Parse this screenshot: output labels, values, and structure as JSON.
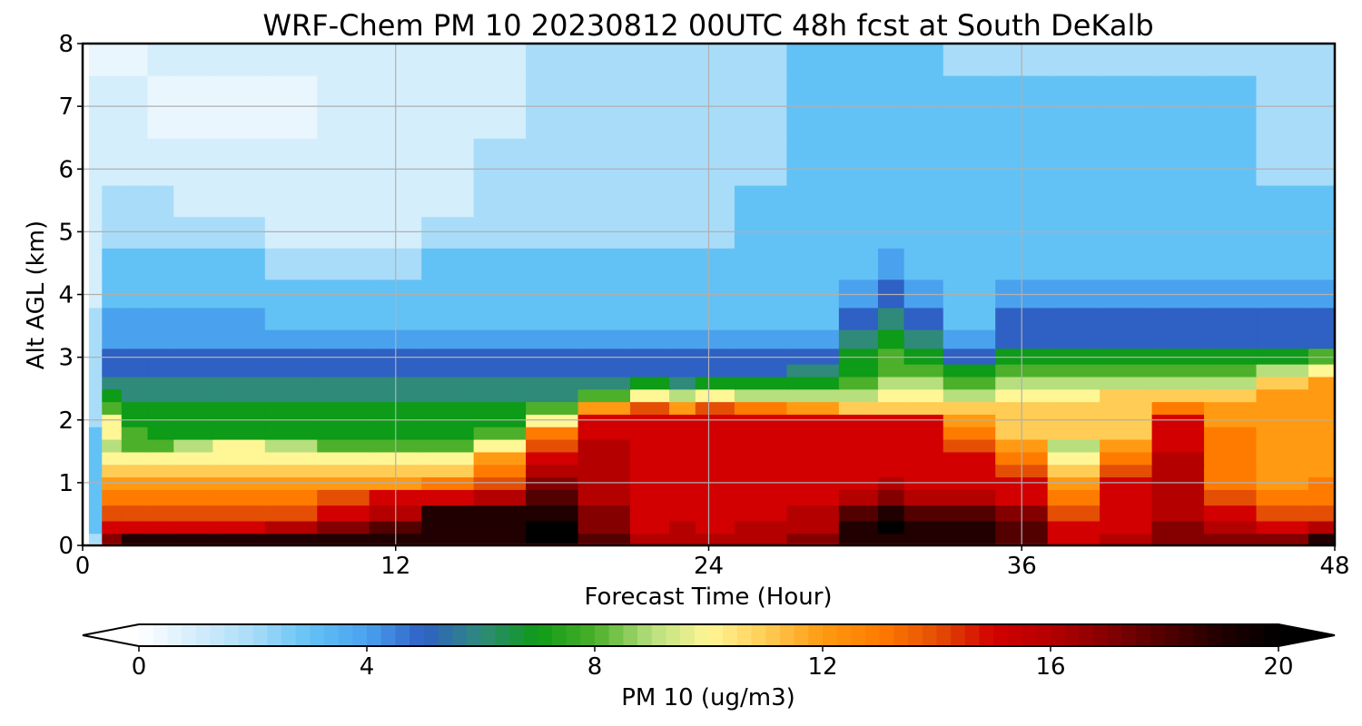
{
  "chart_data": {
    "type": "heatmap",
    "title": "WRF-Chem PM 10  20230812 00UTC 48h fcst at South DeKalb",
    "xlabel": "Forecast Time (Hour)",
    "ylabel": "Alt AGL (km)",
    "xlim": [
      0,
      48
    ],
    "ylim": [
      0,
      8
    ],
    "xticks": [
      0,
      12,
      24,
      36,
      48
    ],
    "yticks": [
      0,
      1,
      2,
      3,
      4,
      5,
      6,
      7,
      8
    ],
    "grid": true,
    "colorbar": {
      "label": "PM 10  (ug/m3)",
      "ticks": [
        0,
        4,
        8,
        12,
        16,
        20
      ],
      "range": [
        0,
        20
      ],
      "extend": "both",
      "orientation": "horizontal",
      "color_stops": [
        {
          "value": 0,
          "color": "#ffffff"
        },
        {
          "value": 2,
          "color": "#a9dcf8"
        },
        {
          "value": 3,
          "color": "#63c2f5"
        },
        {
          "value": 4,
          "color": "#4aa2ee"
        },
        {
          "value": 5,
          "color": "#2f60c4"
        },
        {
          "value": 6,
          "color": "#2f8a7a"
        },
        {
          "value": 7,
          "color": "#0d9b18"
        },
        {
          "value": 8,
          "color": "#4cb02a"
        },
        {
          "value": 9,
          "color": "#b7df7d"
        },
        {
          "value": 10,
          "color": "#fff696"
        },
        {
          "value": 11,
          "color": "#ffcc55"
        },
        {
          "value": 12,
          "color": "#ff9a12"
        },
        {
          "value": 13,
          "color": "#ff7b00"
        },
        {
          "value": 14,
          "color": "#e44f05"
        },
        {
          "value": 15,
          "color": "#d20000"
        },
        {
          "value": 16,
          "color": "#b50000"
        },
        {
          "value": 17,
          "color": "#840000"
        },
        {
          "value": 18,
          "color": "#520000"
        },
        {
          "value": 19,
          "color": "#200000"
        },
        {
          "value": 20,
          "color": "#000000"
        }
      ]
    },
    "x": [
      0,
      0.5,
      1,
      2,
      3,
      4,
      6,
      8,
      10,
      12,
      14,
      16,
      18,
      20,
      22,
      23,
      24,
      26,
      28,
      30,
      31,
      32,
      34,
      36,
      38,
      40,
      42,
      44,
      46,
      48
    ],
    "y": [
      0,
      0.1,
      0.3,
      0.5,
      0.8,
      1.0,
      1.2,
      1.4,
      1.6,
      1.8,
      2.0,
      2.2,
      2.4,
      2.6,
      2.8,
      3.0,
      3.3,
      3.6,
      4.0,
      4.5,
      5.0,
      5.5,
      6.0,
      7.0,
      8.0
    ],
    "z": [
      [
        0,
        1,
        16,
        18,
        18,
        18,
        18,
        18,
        18,
        18,
        18,
        18,
        18,
        17,
        16,
        16,
        16,
        16,
        16,
        18,
        18,
        18,
        18,
        17,
        15,
        16,
        17,
        17,
        17,
        19
      ],
      [
        0,
        2,
        17,
        19,
        19,
        19,
        19,
        19,
        19,
        19,
        19,
        19,
        20,
        18,
        16,
        16,
        16,
        16,
        17,
        19,
        19,
        19,
        19,
        18,
        15,
        16,
        17,
        17,
        17,
        19
      ],
      [
        0,
        3,
        15,
        15,
        15,
        15,
        15,
        16,
        17,
        18,
        19,
        19,
        20,
        17,
        15,
        16,
        15,
        16,
        16,
        19,
        20,
        19,
        19,
        18,
        15,
        15,
        17,
        16,
        15,
        16
      ],
      [
        0,
        3,
        14,
        14,
        14,
        14,
        14,
        14,
        15,
        16,
        19,
        19,
        19,
        17,
        15,
        15,
        15,
        15,
        16,
        18,
        19,
        18,
        18,
        17,
        14,
        15,
        16,
        15,
        14,
        14
      ],
      [
        0,
        3,
        13,
        13,
        13,
        13,
        13,
        13,
        14,
        15,
        15,
        16,
        18,
        16,
        15,
        15,
        15,
        15,
        15,
        16,
        17,
        16,
        16,
        15,
        13,
        15,
        16,
        14,
        13,
        13
      ],
      [
        0,
        3,
        12,
        12,
        12,
        12,
        12,
        12,
        12,
        12,
        13,
        14,
        17,
        16,
        15,
        15,
        15,
        15,
        15,
        15,
        16,
        15,
        15,
        15,
        12,
        15,
        16,
        13,
        12,
        13
      ],
      [
        0,
        3,
        11,
        11,
        11,
        11,
        11,
        11,
        11,
        11,
        11,
        13,
        16,
        16,
        15,
        15,
        15,
        15,
        15,
        15,
        15,
        15,
        15,
        14,
        11,
        14,
        16,
        13,
        12,
        12
      ],
      [
        0,
        3,
        10,
        10,
        10,
        10,
        10,
        10,
        10,
        10,
        10,
        12,
        15,
        16,
        15,
        15,
        15,
        15,
        15,
        15,
        15,
        15,
        15,
        13,
        10,
        13,
        16,
        13,
        12,
        12
      ],
      [
        0,
        3,
        9,
        8,
        8,
        9,
        10,
        9,
        8,
        8,
        8,
        10,
        14,
        16,
        15,
        15,
        15,
        15,
        15,
        15,
        15,
        15,
        14,
        12,
        9,
        12,
        15,
        13,
        12,
        12
      ],
      [
        0,
        3,
        10,
        8,
        7,
        7,
        7,
        7,
        7,
        7,
        7,
        8,
        13,
        15,
        15,
        15,
        15,
        15,
        15,
        15,
        15,
        15,
        13,
        11,
        11,
        11,
        15,
        13,
        12,
        12
      ],
      [
        0,
        2,
        10,
        7,
        7,
        7,
        7,
        7,
        7,
        7,
        7,
        7,
        10,
        15,
        15,
        15,
        15,
        15,
        15,
        15,
        15,
        15,
        12,
        11,
        11,
        11,
        15,
        12,
        12,
        12
      ],
      [
        0,
        2,
        8,
        7,
        7,
        7,
        7,
        7,
        7,
        7,
        7,
        7,
        8,
        12,
        14,
        12,
        14,
        13,
        12,
        11,
        11,
        11,
        11,
        11,
        11,
        11,
        13,
        12,
        12,
        12
      ],
      [
        0,
        2,
        7,
        6,
        6,
        6,
        6,
        6,
        6,
        6,
        6,
        6,
        6,
        8,
        10,
        9,
        10,
        9,
        9,
        9,
        10,
        10,
        9,
        10,
        10,
        11,
        11,
        11,
        12,
        12
      ],
      [
        0,
        2,
        6,
        6,
        6,
        6,
        6,
        6,
        6,
        6,
        6,
        6,
        6,
        6,
        7,
        6,
        7,
        7,
        7,
        8,
        9,
        9,
        8,
        9,
        9,
        9,
        9,
        9,
        11,
        12
      ],
      [
        0,
        2,
        5,
        5,
        5,
        5,
        5,
        5,
        5,
        5,
        5,
        5,
        5,
        5,
        5,
        5,
        5,
        5,
        6,
        7,
        8,
        8,
        7,
        8,
        8,
        8,
        8,
        8,
        9,
        10
      ],
      [
        0,
        2,
        5,
        5,
        5,
        5,
        5,
        5,
        5,
        5,
        5,
        5,
        5,
        5,
        5,
        5,
        5,
        5,
        5,
        7,
        8,
        7,
        5,
        7,
        7,
        7,
        7,
        7,
        7,
        8
      ],
      [
        0,
        2,
        4,
        4,
        4,
        4,
        4,
        4,
        4,
        4,
        4,
        4,
        4,
        4,
        4,
        4,
        4,
        4,
        4,
        6,
        7,
        6,
        4,
        5,
        5,
        5,
        5,
        5,
        5,
        5
      ],
      [
        0,
        2,
        4,
        4,
        4,
        4,
        4,
        3,
        3,
        3,
        3,
        3,
        3,
        3,
        3,
        3,
        3,
        3,
        3,
        5,
        6,
        5,
        3,
        5,
        5,
        5,
        5,
        5,
        5,
        5
      ],
      [
        0,
        1,
        3,
        3,
        3,
        3,
        3,
        3,
        3,
        3,
        3,
        3,
        3,
        3,
        3,
        3,
        3,
        3,
        3,
        4,
        5,
        4,
        3,
        4,
        4,
        4,
        4,
        4,
        4,
        4
      ],
      [
        0,
        1,
        3,
        3,
        3,
        3,
        3,
        2,
        2,
        2,
        3,
        3,
        3,
        3,
        3,
        3,
        3,
        3,
        3,
        3,
        4,
        3,
        3,
        3,
        3,
        3,
        3,
        3,
        3,
        3
      ],
      [
        0,
        1,
        2,
        2,
        2,
        2,
        2,
        1,
        1,
        1,
        2,
        2,
        2,
        2,
        2,
        2,
        2,
        3,
        3,
        3,
        3,
        3,
        3,
        3,
        3,
        3,
        3,
        3,
        3,
        3
      ],
      [
        0,
        1,
        2,
        2,
        2,
        1,
        1,
        1,
        1,
        1,
        1,
        2,
        2,
        2,
        2,
        2,
        2,
        3,
        3,
        3,
        3,
        3,
        3,
        3,
        3,
        3,
        3,
        3,
        3,
        3
      ],
      [
        0,
        1,
        1,
        1,
        1,
        1,
        1,
        1,
        1,
        1,
        1,
        2,
        2,
        2,
        2,
        2,
        2,
        2,
        3,
        3,
        3,
        3,
        3,
        3,
        3,
        3,
        3,
        3,
        2,
        2
      ],
      [
        0,
        1,
        1,
        1,
        0.5,
        0.5,
        0.5,
        0.5,
        1,
        1,
        1,
        1,
        2,
        2,
        2,
        2,
        2,
        2,
        3,
        3,
        3,
        3,
        3,
        3,
        3,
        3,
        3,
        3,
        2,
        2
      ],
      [
        0,
        0.5,
        0.5,
        0.5,
        1,
        1,
        1,
        1,
        1,
        1,
        1,
        1,
        2,
        2,
        2,
        2,
        2,
        2,
        3,
        3,
        3,
        3,
        2,
        2,
        2,
        2,
        2,
        2,
        2,
        2
      ]
    ]
  }
}
